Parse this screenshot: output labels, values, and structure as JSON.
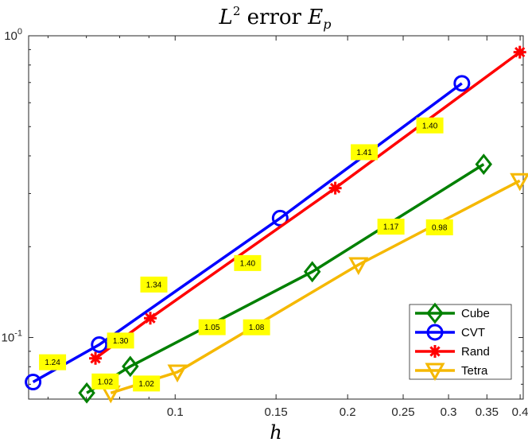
{
  "chart_data": {
    "type": "line",
    "title_main": "L",
    "title_sup": "2",
    "title_mid": " error ",
    "title_var": "E",
    "title_sub": "p",
    "xlabel": "h",
    "ylabel": "",
    "xscale": "log",
    "yscale": "log",
    "xlim": [
      0.0555,
      0.405
    ],
    "ylim": [
      0.0625,
      1.0
    ],
    "xticks": [
      {
        "value": 0.1,
        "label": "0.1"
      },
      {
        "value": 0.15,
        "label": "0.15"
      },
      {
        "value": 0.2,
        "label": "0.2"
      },
      {
        "value": 0.25,
        "label": "0.25"
      },
      {
        "value": 0.3,
        "label": "0.3"
      },
      {
        "value": 0.35,
        "label": "0.35"
      },
      {
        "value": 0.4,
        "label": "0.4"
      }
    ],
    "yticks": [
      {
        "value": 0.1,
        "base": "10",
        "exp": "-1"
      },
      {
        "value": 1.0,
        "base": "10",
        "exp": "0"
      }
    ],
    "grid": false,
    "legend_position": "bottom-right",
    "series": [
      {
        "name": "Cube",
        "color": "#008000",
        "marker": "diamond",
        "x": [
          0.0701,
          0.0835,
          0.1735,
          0.3455
        ],
        "y": [
          0.0655,
          0.0802,
          0.1652,
          0.3751
        ],
        "rates": [
          {
            "label": "1.02",
            "x": 0.0755,
            "y": 0.0715
          },
          {
            "label": "1.05",
            "x": 0.116,
            "y": 0.1082
          },
          {
            "label": "1.17",
            "x": 0.238,
            "y": 0.233
          }
        ]
      },
      {
        "name": "CVT",
        "color": "#0000FF",
        "marker": "circle",
        "x": [
          0.0565,
          0.0737,
          0.1525,
          0.3165
        ],
        "y": [
          0.0712,
          0.0947,
          0.2486,
          0.6955
        ],
        "rates": [
          {
            "label": "1.24",
            "x": 0.0611,
            "y": 0.0828
          },
          {
            "label": "1.30",
            "x": 0.0803,
            "y": 0.0977
          },
          {
            "label": "1.40",
            "x": 0.1338,
            "y": 0.1765
          },
          {
            "label": "1.40",
            "x": 0.2783,
            "y": 0.5045
          }
        ]
      },
      {
        "name": "Rand",
        "color": "#FF0000",
        "marker": "asterisk",
        "x": [
          0.0726,
          0.0905,
          0.1903,
          0.3995
        ],
        "y": [
          0.0853,
          0.1159,
          0.3127,
          0.8823
        ],
        "rates": [
          {
            "label": "1.34",
            "x": 0.0918,
            "y": 0.1498
          },
          {
            "label": "1.41",
            "x": 0.2138,
            "y": 0.4113
          }
        ]
      },
      {
        "name": "Tetra",
        "color": "#F5B800",
        "marker": "triangle-down",
        "x": [
          0.0772,
          0.1009,
          0.2089,
          0.3995
        ],
        "y": [
          0.0655,
          0.0768,
          0.1742,
          0.3309
        ],
        "rates": [
          {
            "label": "1.02",
            "x": 0.0891,
            "y": 0.0704
          },
          {
            "label": "1.08",
            "x": 0.1387,
            "y": 0.1081
          },
          {
            "label": "0.98",
            "x": 0.2893,
            "y": 0.2318
          }
        ]
      }
    ]
  }
}
